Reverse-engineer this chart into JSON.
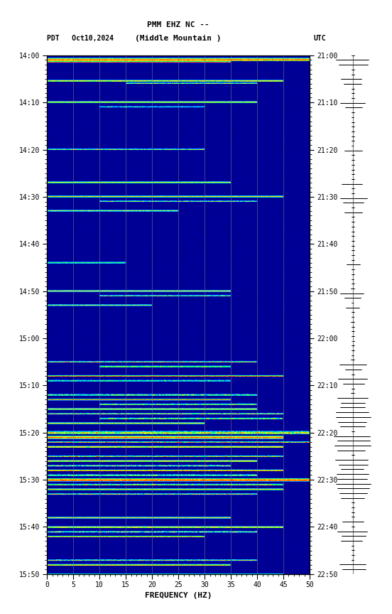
{
  "title_line1": "PMM EHZ NC --",
  "title_line2": "(Middle Mountain )",
  "left_label": "PDT   Oct10,2024",
  "right_label": "UTC",
  "xlabel": "FREQUENCY (HZ)",
  "freq_min": 0,
  "freq_max": 50,
  "pdt_ticks": [
    "14:00",
    "14:10",
    "14:20",
    "14:30",
    "14:40",
    "14:50",
    "15:00",
    "15:10",
    "15:20",
    "15:30",
    "15:40",
    "15:50"
  ],
  "utc_ticks": [
    "21:00",
    "21:10",
    "21:20",
    "21:30",
    "21:40",
    "21:50",
    "22:00",
    "22:10",
    "22:20",
    "22:30",
    "22:40",
    "22:50"
  ],
  "n_time": 660,
  "n_freq": 500,
  "background_color": "#ffffff",
  "spectrogram_bg": "#00008B",
  "vertical_line_color": "#808080",
  "vertical_line_freq": [
    5,
    10,
    15,
    20,
    25,
    30,
    35,
    40,
    45
  ],
  "seed": 42
}
